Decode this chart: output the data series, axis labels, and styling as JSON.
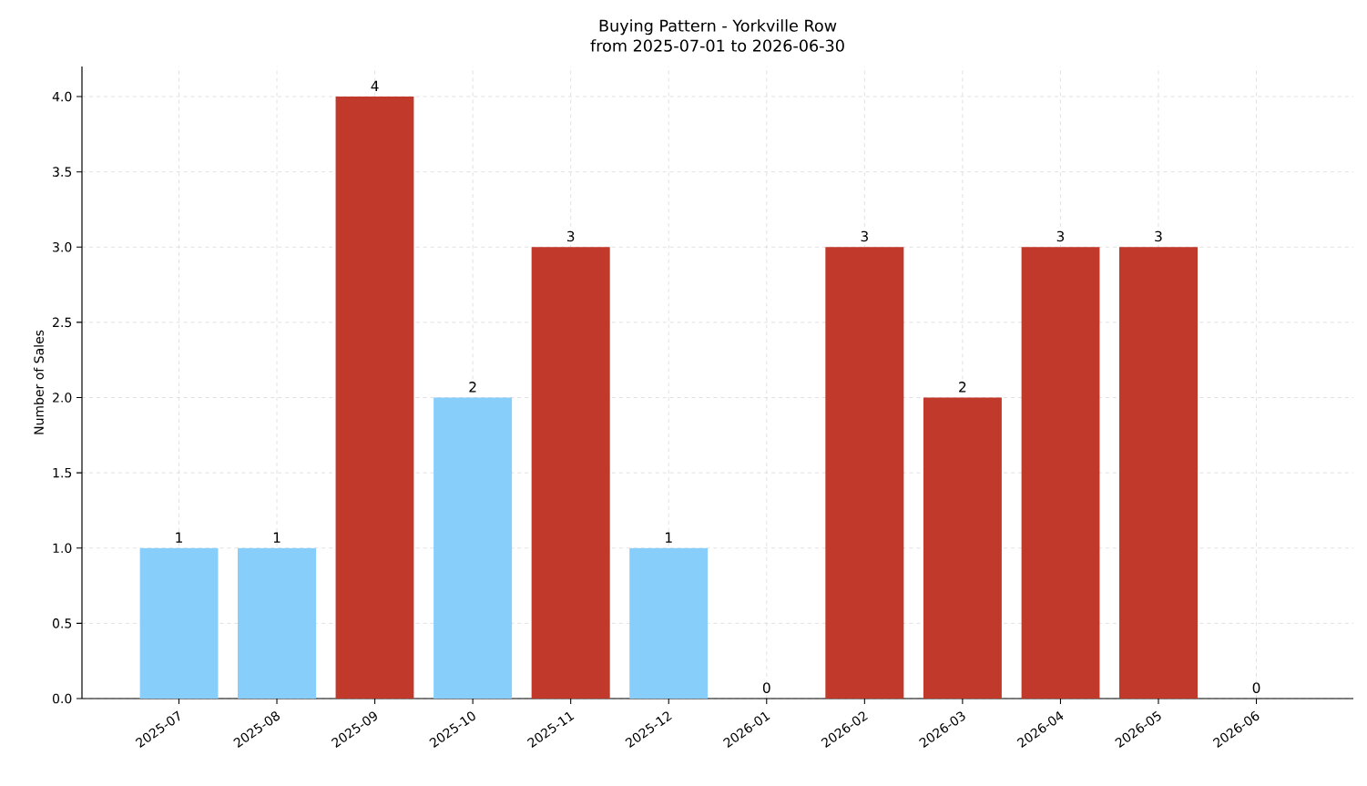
{
  "chart_data": {
    "type": "bar",
    "title": "Buying Pattern - Yorkville Row",
    "subtitle": "from 2025-07-01 to 2026-06-30",
    "ylabel": "Number of Sales",
    "categories": [
      "2025-07",
      "2025-08",
      "2025-09",
      "2025-10",
      "2025-11",
      "2025-12",
      "2026-01",
      "2026-02",
      "2026-03",
      "2026-04",
      "2026-05",
      "2026-06"
    ],
    "values": [
      1,
      1,
      4,
      2,
      3,
      1,
      0,
      3,
      2,
      3,
      3,
      0
    ],
    "colors": [
      "#87cefa",
      "#87cefa",
      "#c0392b",
      "#87cefa",
      "#c0392b",
      "#87cefa",
      "#87cefa",
      "#c0392b",
      "#c0392b",
      "#c0392b",
      "#c0392b",
      "#c0392b"
    ],
    "ylim": [
      0,
      4.2
    ],
    "yticks": [
      {
        "value": 0,
        "label": "0.0"
      },
      {
        "value": 0.5,
        "label": "0.5"
      },
      {
        "value": 1,
        "label": "1.0"
      },
      {
        "value": 1.5,
        "label": "1.5"
      },
      {
        "value": 2,
        "label": "2.0"
      },
      {
        "value": 2.5,
        "label": "2.5"
      },
      {
        "value": 3,
        "label": "3.0"
      },
      {
        "value": 3.5,
        "label": "3.5"
      },
      {
        "value": 4,
        "label": "4.0"
      }
    ],
    "data_labels": true,
    "grid": true
  }
}
